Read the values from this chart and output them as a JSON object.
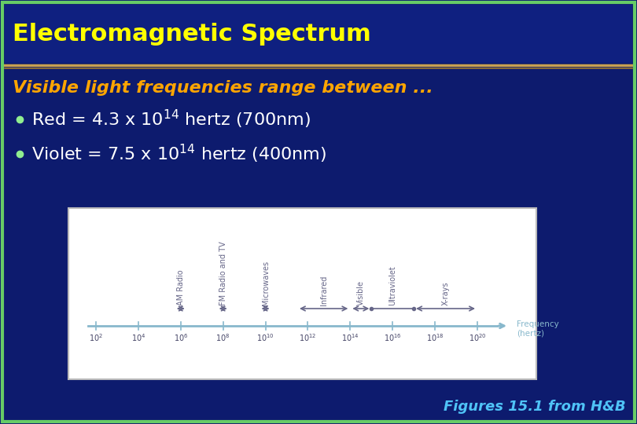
{
  "title": "Electromagnetic Spectrum",
  "subtitle": "Visible light frequencies range between ...",
  "caption": "Figures 15.1 from H&B",
  "bg_color": "#0d1b6e",
  "title_color": "#ffff00",
  "subtitle_color": "#ffa500",
  "bullet_color": "#ffffff",
  "bullet_dot_color": "#90ee90",
  "caption_color": "#4fc3f7",
  "border_color": "#66cc66",
  "separator_color_top": "#c8a050",
  "separator_color_bot": "#a07830",
  "spectrum_labels": [
    "AM Radio",
    "FM Radio and TV",
    "Microwaves",
    "Infrared",
    "Visible",
    "Ultraviolet",
    "X-rays"
  ],
  "axis_color": "#88b8cc",
  "axis_label_color": "#88b8cc",
  "band_color": "#666688",
  "tick_label_color": "#444466",
  "freq_label": "Frequency\n(hertz)"
}
